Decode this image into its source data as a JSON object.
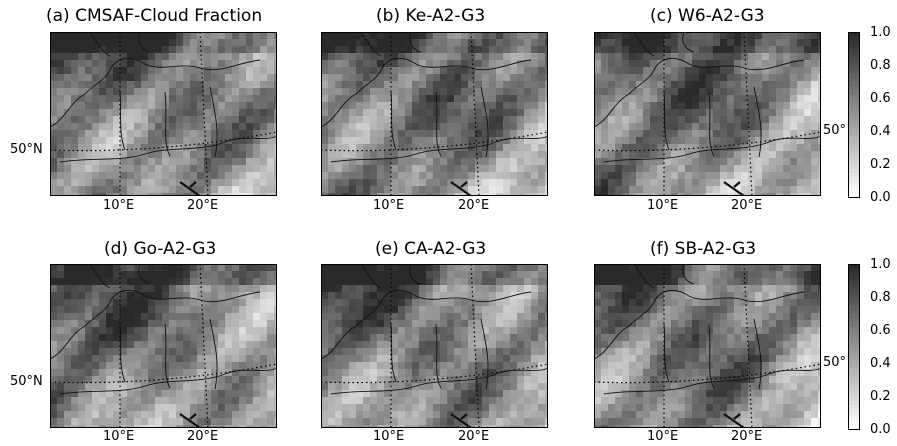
{
  "colors": {
    "max": "#2a2a2a",
    "min": "#ffffff"
  },
  "chart_data": {
    "type": "heatmap",
    "colormap": "greys",
    "vmin": 0.0,
    "vmax": 1.0,
    "colorbar_ticks": [
      "1.0",
      "0.8",
      "0.6",
      "0.4",
      "0.2",
      "0.0"
    ],
    "lat_tick": "50°N",
    "lat_tick_right": "50°",
    "lon_ticks": [
      "10°E",
      "20°E"
    ],
    "panels": [
      {
        "title": "(a) CMSAF-Cloud Fraction",
        "show_lat_left": true,
        "show_lat_right": false,
        "show_lon": true
      },
      {
        "title": "(b) Ke-A2-G3",
        "show_lat_left": false,
        "show_lat_right": false,
        "show_lon": true
      },
      {
        "title": "(c) W6-A2-G3",
        "show_lat_left": false,
        "show_lat_right": true,
        "show_lon": true
      },
      {
        "title": "(d) Go-A2-G3",
        "show_lat_left": true,
        "show_lat_right": false,
        "show_lon": true
      },
      {
        "title": "(e) CA-A2-G3",
        "show_lat_left": false,
        "show_lat_right": false,
        "show_lon": true
      },
      {
        "title": "(f) SB-A2-G3",
        "show_lat_left": false,
        "show_lat_right": true,
        "show_lon": true
      }
    ]
  }
}
